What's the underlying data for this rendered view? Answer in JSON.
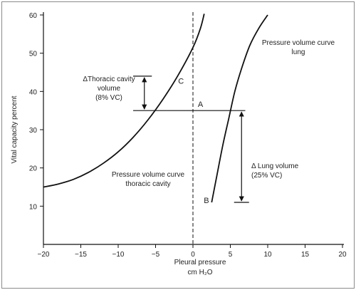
{
  "chart_data": {
    "type": "line",
    "xlabel_line1": "Pleural pressure",
    "xlabel_line2": "cm H₂O",
    "ylabel": "Vital capacity percent",
    "xlim": [
      -20,
      20
    ],
    "ylim": [
      0,
      60
    ],
    "x_ticks": [
      -20,
      -15,
      -10,
      -5,
      0,
      5,
      10,
      15,
      20
    ],
    "y_ticks": [
      10,
      20,
      30,
      40,
      50,
      60
    ],
    "series": [
      {
        "key": "thoracic",
        "x": [
          -20,
          -18,
          -16,
          -14,
          -12,
          -10,
          -8,
          -6,
          -4,
          -2,
          0,
          1,
          1.5
        ],
        "y": [
          15,
          15.8,
          17,
          18.8,
          21.2,
          24.2,
          28,
          32.6,
          38,
          44.2,
          51.5,
          56.5,
          60.3
        ]
      },
      {
        "key": "lung",
        "x": [
          2.5,
          3.2,
          4,
          4.8,
          5.6,
          6.5,
          7.6,
          8.8,
          10
        ],
        "y": [
          11,
          18,
          26,
          33,
          40,
          46,
          52,
          56.5,
          60
        ]
      }
    ],
    "vertical_dashed_x": 0,
    "horizontal_line": {
      "y": 35,
      "x_from": -8,
      "x_to": 7
    },
    "annotations": {
      "thoracic_delta": {
        "lines": [
          "ΔThoracic cavity",
          "volume",
          "(8% VC)"
        ],
        "x": -6.5,
        "y_from": 35,
        "y_to": 44,
        "bar_x_from": -8,
        "bar_x_to": -5.5
      },
      "lung_delta": {
        "lines": [
          "Δ Lung volume",
          "(25% VC)"
        ],
        "x": 6.5,
        "y_from": 35,
        "y_to": 11,
        "bar_x_from": 5.5,
        "bar_x_to": 7.5
      },
      "lung_curve_label": [
        "Pressure volume curve",
        "lung"
      ],
      "thoracic_curve_label": [
        "Pressure volume curve",
        "thoracic cavity"
      ],
      "point_labels": [
        {
          "text": "A",
          "x": 1,
          "y": 36
        },
        {
          "text": "B",
          "x": 1.8,
          "y": 10.8
        },
        {
          "text": "C",
          "x": -1.6,
          "y": 42
        }
      ]
    }
  }
}
